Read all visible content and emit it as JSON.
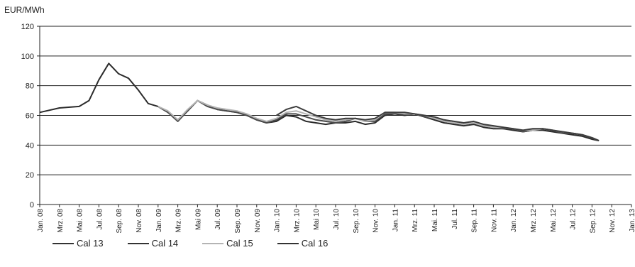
{
  "chart_data": {
    "type": "line",
    "unit_label": "EUR/MWh",
    "ylim": [
      0,
      120
    ],
    "yticks": [
      0,
      20,
      40,
      60,
      80,
      100,
      120
    ],
    "x_tick_labels": [
      "Jan. 08",
      "Mrz. 08",
      "Mai. 08",
      "Jul. 08",
      "Sep. 08",
      "Nov. 08",
      "Jan. 09",
      "Mrz. 09",
      "Mai 09",
      "Jul. 09",
      "Sep. 09",
      "Nov. 09",
      "Jan. 10",
      "Mrz. 10",
      "Mai 10",
      "Jul. 10",
      "Sep. 10",
      "Nov. 10",
      "Jan. 11",
      "Mrz. 11",
      "Mai. 11",
      "Jul. 11",
      "Sep. 11",
      "Nov. 11",
      "Jan. 12",
      "Mrz. 12",
      "Mai. 12",
      "Jul. 12",
      "Sep. 12",
      "Nov. 12",
      "Jan. 13"
    ],
    "grid": "horizontal",
    "legend_position": "bottom-left",
    "series": [
      {
        "name": "Cal 13",
        "color": "#2b2b2b",
        "values": [
          [
            0,
            62
          ],
          [
            2,
            65
          ],
          [
            4,
            66
          ],
          [
            5,
            70
          ],
          [
            6,
            84
          ],
          [
            7,
            95
          ],
          [
            8,
            88
          ],
          [
            9,
            85
          ],
          [
            10,
            77
          ],
          [
            11,
            68
          ],
          [
            12,
            66
          ],
          [
            13,
            62
          ],
          [
            14,
            57
          ],
          [
            15,
            63
          ],
          [
            16,
            70
          ],
          [
            17,
            67
          ],
          [
            18,
            64
          ],
          [
            19,
            63
          ],
          [
            20,
            62
          ],
          [
            21,
            60
          ],
          [
            22,
            57
          ],
          [
            23,
            55
          ],
          [
            24,
            56
          ],
          [
            25,
            60
          ],
          [
            26,
            59
          ],
          [
            27,
            56
          ],
          [
            28,
            55
          ],
          [
            29,
            54
          ],
          [
            30,
            55
          ],
          [
            31,
            55
          ],
          [
            32,
            56
          ],
          [
            33,
            54
          ],
          [
            34,
            55
          ],
          [
            35,
            60
          ],
          [
            36,
            61
          ],
          [
            37,
            60
          ],
          [
            38,
            61
          ],
          [
            39,
            59
          ],
          [
            40,
            57
          ],
          [
            41,
            55
          ],
          [
            42,
            54
          ],
          [
            43,
            53
          ],
          [
            44,
            54
          ],
          [
            45,
            52
          ],
          [
            46,
            51
          ],
          [
            47,
            51
          ],
          [
            48,
            50
          ],
          [
            49,
            49
          ],
          [
            50,
            50
          ],
          [
            51,
            50
          ],
          [
            52,
            49
          ],
          [
            53,
            48
          ],
          [
            54,
            47
          ],
          [
            55,
            46
          ],
          [
            56,
            44
          ],
          [
            56.7,
            43
          ]
        ]
      },
      {
        "name": "Cal 14",
        "color": "#4a4a4a",
        "values": [
          [
            12,
            66
          ],
          [
            13,
            62
          ],
          [
            14,
            56
          ],
          [
            15,
            63
          ],
          [
            16,
            70
          ],
          [
            17,
            66
          ],
          [
            18,
            64
          ],
          [
            19,
            63
          ],
          [
            20,
            62
          ],
          [
            21,
            60
          ],
          [
            22,
            57
          ],
          [
            23,
            55
          ],
          [
            24,
            57
          ],
          [
            25,
            61
          ],
          [
            26,
            61
          ],
          [
            27,
            59
          ],
          [
            28,
            57
          ],
          [
            29,
            56
          ],
          [
            30,
            55
          ],
          [
            31,
            56
          ],
          [
            32,
            58
          ],
          [
            33,
            56
          ],
          [
            34,
            56
          ],
          [
            35,
            61
          ],
          [
            36,
            61
          ],
          [
            37,
            61
          ],
          [
            38,
            61
          ],
          [
            39,
            59
          ],
          [
            40,
            58
          ],
          [
            41,
            56
          ],
          [
            42,
            55
          ],
          [
            43,
            54
          ],
          [
            44,
            55
          ],
          [
            45,
            53
          ],
          [
            46,
            52
          ],
          [
            47,
            51
          ],
          [
            48,
            51
          ],
          [
            49,
            49
          ],
          [
            50,
            50
          ],
          [
            51,
            51
          ],
          [
            52,
            50
          ],
          [
            53,
            48
          ],
          [
            54,
            48
          ],
          [
            55,
            47
          ],
          [
            56,
            45
          ],
          [
            56.7,
            43
          ]
        ]
      },
      {
        "name": "Cal 15",
        "color": "#b4b4b4",
        "values": [
          [
            12,
            66
          ],
          [
            13,
            63
          ],
          [
            14,
            57
          ],
          [
            15,
            64
          ],
          [
            16,
            70
          ],
          [
            17,
            67
          ],
          [
            18,
            65
          ],
          [
            19,
            64
          ],
          [
            20,
            63
          ],
          [
            21,
            61
          ],
          [
            22,
            58
          ],
          [
            23,
            56
          ],
          [
            24,
            58
          ],
          [
            25,
            62
          ],
          [
            26,
            63
          ],
          [
            27,
            61
          ],
          [
            28,
            59
          ],
          [
            29,
            57
          ],
          [
            30,
            56
          ],
          [
            31,
            57
          ],
          [
            32,
            58
          ],
          [
            33,
            56
          ],
          [
            34,
            57
          ],
          [
            35,
            62
          ],
          [
            36,
            62
          ],
          [
            37,
            61
          ],
          [
            38,
            61
          ],
          [
            39,
            60
          ],
          [
            40,
            58
          ],
          [
            41,
            56
          ],
          [
            42,
            55
          ],
          [
            43,
            54
          ],
          [
            44,
            55
          ],
          [
            45,
            53
          ],
          [
            46,
            52
          ],
          [
            47,
            52
          ],
          [
            48,
            51
          ],
          [
            49,
            50
          ],
          [
            50,
            50
          ],
          [
            51,
            51
          ],
          [
            52,
            50
          ],
          [
            53,
            49
          ],
          [
            54,
            48
          ],
          [
            55,
            47
          ],
          [
            56,
            45
          ],
          [
            56.7,
            43
          ]
        ]
      },
      {
        "name": "Cal 16",
        "color": "#3c3c3c",
        "values": [
          [
            24,
            60
          ],
          [
            25,
            64
          ],
          [
            26,
            66
          ],
          [
            27,
            63
          ],
          [
            28,
            60
          ],
          [
            29,
            58
          ],
          [
            30,
            57
          ],
          [
            31,
            58
          ],
          [
            32,
            58
          ],
          [
            33,
            57
          ],
          [
            34,
            58
          ],
          [
            35,
            62
          ],
          [
            36,
            62
          ],
          [
            37,
            62
          ],
          [
            38,
            61
          ],
          [
            39,
            60
          ],
          [
            40,
            59
          ],
          [
            41,
            57
          ],
          [
            42,
            56
          ],
          [
            43,
            55
          ],
          [
            44,
            56
          ],
          [
            45,
            54
          ],
          [
            46,
            53
          ],
          [
            47,
            52
          ],
          [
            48,
            51
          ],
          [
            49,
            50
          ],
          [
            50,
            51
          ],
          [
            51,
            51
          ],
          [
            52,
            50
          ],
          [
            53,
            49
          ],
          [
            54,
            48
          ],
          [
            55,
            47
          ],
          [
            56,
            45
          ],
          [
            56.7,
            43
          ]
        ]
      }
    ]
  }
}
